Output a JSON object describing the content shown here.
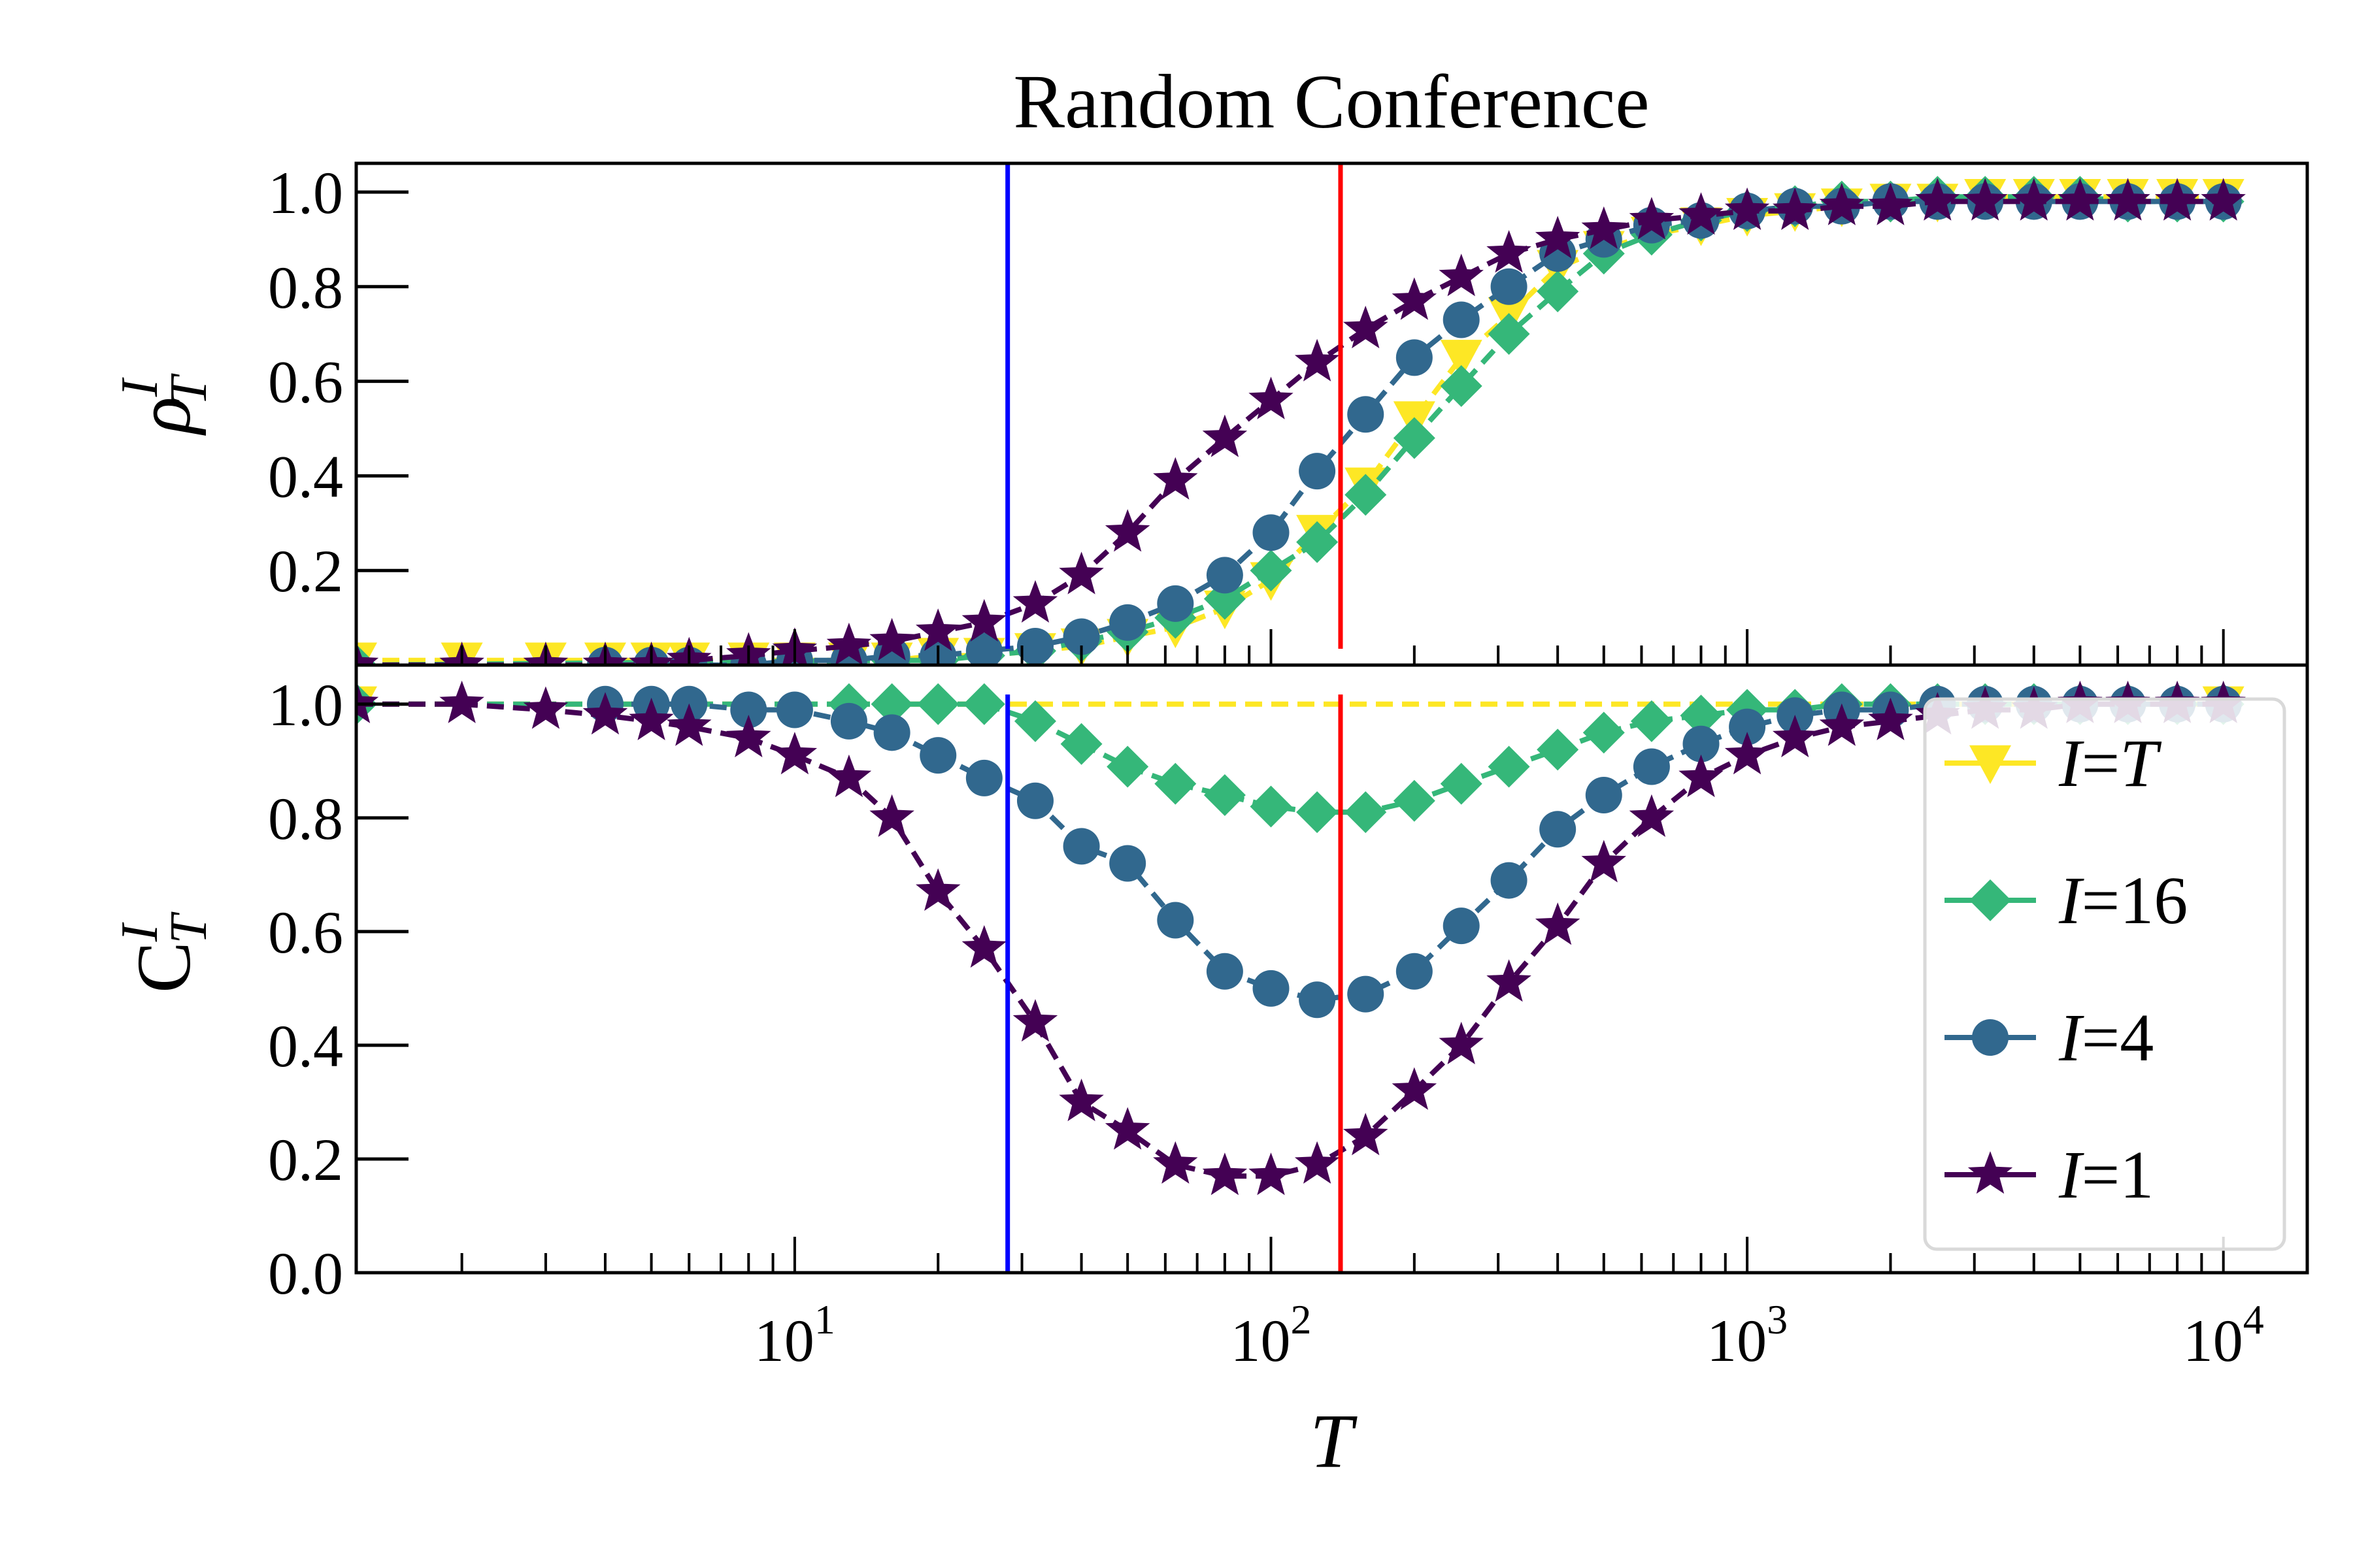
{
  "chart_data": [
    {
      "type": "line",
      "title": "Random Conference",
      "ylabel_base": "ρ",
      "ylabel_sup": "I",
      "ylabel_sub": "T",
      "xscale": "log",
      "xlim": [
        1.2,
        15000
      ],
      "ylim": [
        0.0,
        1.04
      ],
      "yticks": [
        "0.2",
        "0.4",
        "0.6",
        "0.8",
        "1.0"
      ],
      "vlines": [
        {
          "x": 28,
          "color": "#0000ff"
        },
        {
          "x": 140,
          "color": "#ff0000"
        }
      ],
      "series": [
        {
          "name": "I=T",
          "marker": "triangle-down",
          "color": "#fde725",
          "dashed": true,
          "x": [
            1.2,
            2,
            3,
            4,
            5,
            6,
            8,
            10,
            13,
            16,
            20,
            25,
            32,
            40,
            50,
            63,
            80,
            100,
            125,
            158,
            200,
            251,
            316,
            400,
            500,
            630,
            800,
            1000,
            1260,
            1580,
            2000,
            2510,
            3160,
            4000,
            5000,
            6300,
            8000,
            10000
          ],
          "y": [
            0.01,
            0.01,
            0.01,
            0.01,
            0.01,
            0.01,
            0.01,
            0.01,
            0.01,
            0.01,
            0.02,
            0.02,
            0.03,
            0.04,
            0.06,
            0.08,
            0.12,
            0.18,
            0.28,
            0.38,
            0.52,
            0.65,
            0.74,
            0.84,
            0.88,
            0.91,
            0.93,
            0.95,
            0.96,
            0.97,
            0.98,
            0.98,
            0.99,
            0.99,
            0.99,
            0.99,
            0.99,
            0.99
          ]
        },
        {
          "name": "I=16",
          "marker": "diamond",
          "color": "#35b779",
          "dashed": true,
          "x": [
            1.2,
            16,
            20,
            25,
            32,
            40,
            50,
            63,
            80,
            100,
            125,
            158,
            200,
            251,
            316,
            400,
            500,
            630,
            800,
            1000,
            1260,
            1580,
            2000,
            2510,
            3160,
            4000,
            5000,
            6300,
            8000,
            10000
          ],
          "y": [
            0.0,
            0.01,
            0.01,
            0.02,
            0.03,
            0.05,
            0.07,
            0.1,
            0.14,
            0.2,
            0.26,
            0.36,
            0.48,
            0.59,
            0.7,
            0.79,
            0.87,
            0.91,
            0.94,
            0.96,
            0.97,
            0.98,
            0.98,
            0.99,
            0.99,
            0.99,
            0.99,
            0.98,
            0.98,
            0.98
          ]
        },
        {
          "name": "I=4",
          "marker": "circle",
          "color": "#31688e",
          "dashed": true,
          "x": [
            4,
            5,
            6,
            8,
            10,
            13,
            16,
            20,
            25,
            32,
            40,
            50,
            63,
            80,
            100,
            125,
            158,
            200,
            251,
            316,
            400,
            500,
            630,
            800,
            1000,
            1260,
            1580,
            2000,
            2510,
            3160,
            4000,
            5000,
            6300,
            8000,
            10000
          ],
          "y": [
            0.0,
            0.0,
            0.0,
            0.0,
            0.01,
            0.01,
            0.02,
            0.02,
            0.03,
            0.04,
            0.06,
            0.09,
            0.13,
            0.19,
            0.28,
            0.41,
            0.53,
            0.65,
            0.73,
            0.8,
            0.87,
            0.9,
            0.93,
            0.94,
            0.96,
            0.97,
            0.97,
            0.98,
            0.98,
            0.98,
            0.98,
            0.98,
            0.98,
            0.98,
            0.98
          ]
        },
        {
          "name": "I=1",
          "marker": "star",
          "color": "#440154",
          "dashed": true,
          "x": [
            1.2,
            2,
            3,
            4,
            5,
            6,
            8,
            10,
            13,
            16,
            20,
            25,
            32,
            40,
            50,
            63,
            80,
            100,
            125,
            158,
            200,
            251,
            316,
            400,
            500,
            630,
            800,
            1000,
            1260,
            1580,
            2000,
            2510,
            3160,
            4000,
            5000,
            6300,
            8000,
            10000
          ],
          "y": [
            0.0,
            0.0,
            0.0,
            0.0,
            0.0,
            0.01,
            0.02,
            0.03,
            0.04,
            0.05,
            0.07,
            0.09,
            0.13,
            0.19,
            0.28,
            0.39,
            0.48,
            0.56,
            0.64,
            0.71,
            0.77,
            0.82,
            0.87,
            0.9,
            0.92,
            0.94,
            0.95,
            0.96,
            0.96,
            0.97,
            0.97,
            0.98,
            0.98,
            0.98,
            0.98,
            0.98,
            0.98,
            0.98
          ]
        }
      ]
    },
    {
      "type": "line",
      "xlabel": "T",
      "ylabel_base": "C",
      "ylabel_sup": "I",
      "ylabel_sub": "T",
      "xscale": "log",
      "xlim": [
        1.2,
        15000
      ],
      "ylim": [
        0.0,
        1.04
      ],
      "xticks": [
        {
          "value": 10,
          "base": "10",
          "exp": "1"
        },
        {
          "value": 100,
          "base": "10",
          "exp": "2"
        },
        {
          "value": 1000,
          "base": "10",
          "exp": "3"
        },
        {
          "value": 10000,
          "base": "10",
          "exp": "4"
        }
      ],
      "yticks": [
        "0.0",
        "0.2",
        "0.4",
        "0.6",
        "0.8",
        "1.0"
      ],
      "vlines": [
        {
          "x": 28,
          "color": "#0000ff"
        },
        {
          "x": 140,
          "color": "#ff0000"
        }
      ],
      "legend": {
        "position": "lower-right",
        "entries": [
          {
            "label_var": "I",
            "label_eq": "=",
            "label_val": "T",
            "val_italic": true,
            "marker": "triangle-down",
            "color": "#fde725"
          },
          {
            "label_var": "I",
            "label_eq": "=",
            "label_val": "16",
            "val_italic": false,
            "marker": "diamond",
            "color": "#35b779"
          },
          {
            "label_var": "I",
            "label_eq": "=",
            "label_val": "4",
            "val_italic": false,
            "marker": "circle",
            "color": "#31688e"
          },
          {
            "label_var": "I",
            "label_eq": "=",
            "label_val": "1",
            "val_italic": false,
            "marker": "star",
            "color": "#440154"
          }
        ]
      },
      "series": [
        {
          "name": "I=T",
          "marker": "triangle-down",
          "color": "#fde725",
          "dashed": true,
          "x": [
            1.2,
            10000
          ],
          "y": [
            1.0,
            1.0
          ]
        },
        {
          "name": "I=16",
          "marker": "diamond",
          "color": "#35b779",
          "dashed": true,
          "x": [
            1.2,
            13,
            16,
            20,
            25,
            32,
            40,
            50,
            63,
            80,
            100,
            125,
            158,
            200,
            251,
            316,
            400,
            500,
            630,
            800,
            1000,
            1260,
            1580,
            2000,
            2510,
            3160,
            4000,
            5000,
            6300,
            8000,
            10000
          ],
          "y": [
            1.0,
            1.0,
            1.0,
            1.0,
            1.0,
            0.97,
            0.93,
            0.89,
            0.86,
            0.84,
            0.82,
            0.81,
            0.81,
            0.83,
            0.86,
            0.89,
            0.92,
            0.95,
            0.97,
            0.98,
            0.99,
            0.99,
            1.0,
            1.0,
            1.0,
            1.0,
            1.0,
            1.0,
            1.0,
            1.0,
            1.0
          ]
        },
        {
          "name": "I=4",
          "marker": "circle",
          "color": "#31688e",
          "dashed": true,
          "x": [
            4,
            5,
            6,
            8,
            10,
            13,
            16,
            20,
            25,
            32,
            40,
            50,
            63,
            80,
            100,
            125,
            158,
            200,
            251,
            316,
            400,
            500,
            630,
            800,
            1000,
            1260,
            1580,
            2000,
            2510,
            3160,
            4000,
            5000,
            6300,
            8000,
            10000
          ],
          "y": [
            1.0,
            1.0,
            1.0,
            0.99,
            0.99,
            0.97,
            0.95,
            0.91,
            0.87,
            0.83,
            0.75,
            0.72,
            0.62,
            0.53,
            0.5,
            0.48,
            0.49,
            0.53,
            0.61,
            0.69,
            0.78,
            0.84,
            0.89,
            0.93,
            0.96,
            0.98,
            0.99,
            0.99,
            1.0,
            1.0,
            1.0,
            1.0,
            1.0,
            1.0,
            1.0
          ]
        },
        {
          "name": "I=1",
          "marker": "star",
          "color": "#440154",
          "dashed": true,
          "x": [
            1.2,
            2,
            3,
            4,
            5,
            6,
            8,
            10,
            13,
            16,
            20,
            25,
            32,
            40,
            50,
            63,
            80,
            100,
            125,
            158,
            200,
            251,
            316,
            400,
            500,
            630,
            800,
            1000,
            1260,
            1580,
            2000,
            2510,
            3160,
            4000,
            5000,
            6300,
            8000,
            10000
          ],
          "y": [
            1.0,
            1.0,
            0.99,
            0.98,
            0.97,
            0.96,
            0.94,
            0.91,
            0.87,
            0.8,
            0.67,
            0.57,
            0.44,
            0.3,
            0.25,
            0.19,
            0.17,
            0.17,
            0.19,
            0.24,
            0.32,
            0.4,
            0.51,
            0.61,
            0.72,
            0.8,
            0.87,
            0.91,
            0.94,
            0.96,
            0.97,
            0.98,
            0.99,
            0.99,
            1.0,
            1.0,
            1.0,
            1.0
          ]
        }
      ]
    }
  ]
}
